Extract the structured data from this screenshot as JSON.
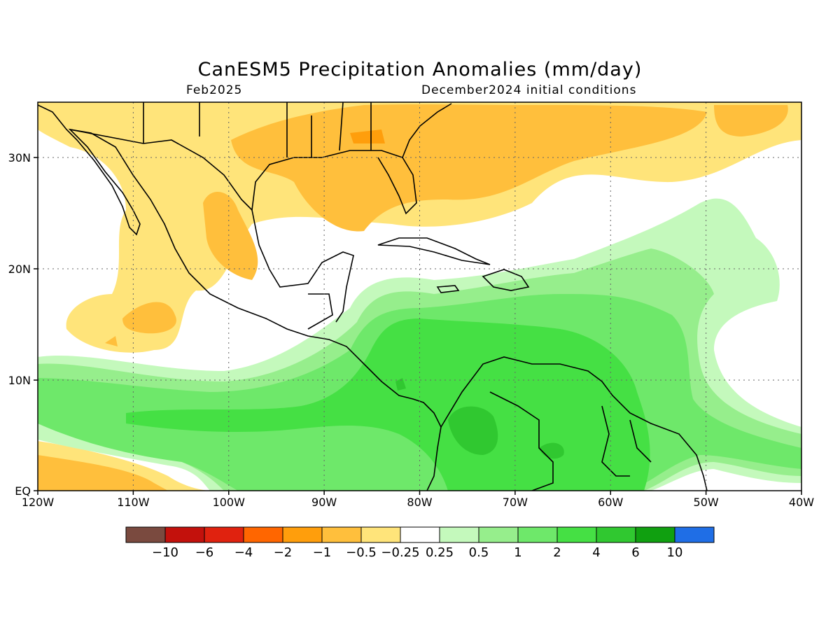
{
  "title": "CanESM5 Precipitation Anomalies (mm/day)",
  "subtitle_left": "Feb2025",
  "subtitle_right": "December2024 initial conditions",
  "lon_ticks": [
    "120W",
    "110W",
    "100W",
    "90W",
    "80W",
    "70W",
    "60W",
    "50W",
    "40W"
  ],
  "lat_ticks": [
    "30N",
    "20N",
    "10N",
    "EQ"
  ],
  "colorbar": {
    "colors": [
      "#7a4a3f",
      "#c3110c",
      "#e0220f",
      "#ff6600",
      "#ff9e0c",
      "#ffbf3c",
      "#ffe47a",
      "#ffffff",
      "#c4f9bc",
      "#96ee8c",
      "#6ee86a",
      "#45e044",
      "#30c830",
      "#10a010",
      "#1f6ee6"
    ],
    "labels": [
      "−10",
      "−6",
      "−4",
      "−2",
      "−1",
      "−0.5",
      "−0.25",
      "0.25",
      "0.5",
      "1",
      "2",
      "4",
      "6",
      "10"
    ]
  },
  "colors": {
    "dry_light": "#ffe47a",
    "dry_mid": "#ffbf3c",
    "dry_strong": "#ff9e0c",
    "wet_light": "#c4f9bc",
    "wet_mid": "#96ee8c",
    "wet_2": "#6ee86a",
    "wet_4": "#45e044",
    "wet_6": "#30c830"
  }
}
